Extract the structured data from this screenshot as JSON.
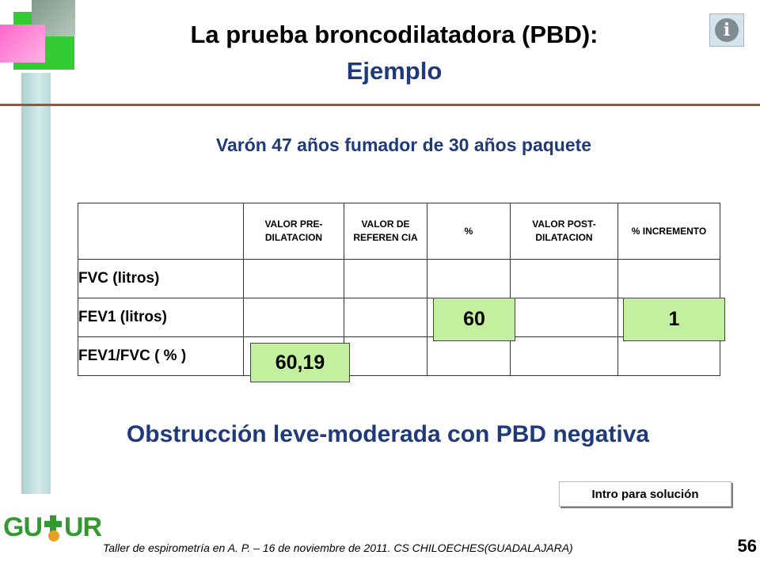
{
  "slide": {
    "title": "La prueba broncodilatadora (PBD):",
    "title_line2": "Ejemplo",
    "subtitle": "Varón 47 años fumador  de 30 años paquete",
    "info_icon_glyph": "i",
    "table": {
      "headers": [
        "",
        "VALOR PRE-DILATACION",
        "VALOR DE REFEREN CIA",
        "%",
        "VALOR POST-DILATACION",
        "% INCREMENTO"
      ],
      "rows": [
        {
          "label": "FVC   (litros)",
          "cells": [
            "",
            "",
            "",
            "",
            ""
          ]
        },
        {
          "label": "FEV1   (litros)",
          "cells": [
            "",
            "",
            "60",
            "",
            "1"
          ]
        },
        {
          "label": "FEV1/FVC ( % )",
          "cells": [
            "60,19",
            "",
            "",
            "",
            ""
          ]
        }
      ]
    },
    "conclusion": "Obstrucción leve-moderada con PBD negativa",
    "button_label": "Intro  para solución",
    "footer": "Taller de espirometría en A. P. – 16 de noviembre de 2011. CS CHILOECHES(GUADALAJARA)",
    "page_number": "56",
    "logo_left": "GU",
    "logo_right": "UR"
  },
  "colors": {
    "title_blue": "#1f3a7a",
    "highlight_green": "#c3f09e",
    "rule_brown": "#a0522d",
    "logo_green": "#339933"
  }
}
